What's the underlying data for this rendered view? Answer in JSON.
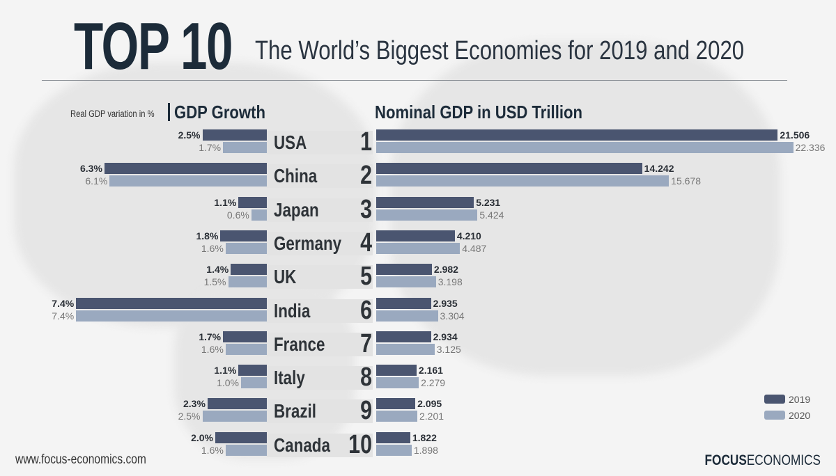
{
  "header": {
    "title": "TOP 10",
    "subtitle": "The World’s Biggest Economies for 2019 and 2020"
  },
  "footer": {
    "url": "www.focus-economics.com",
    "logo_bold": "FOCUS",
    "logo_rest": "ECONOMICS"
  },
  "legend": {
    "2019": "2019",
    "2020": "2020"
  },
  "colors": {
    "2019": "#4a5570",
    "2020": "#9aa9bf"
  },
  "chart_data": [
    {
      "type": "bar",
      "orientation": "horizontal",
      "title": "GDP Growth",
      "subtitle": "Real GDP variation in %",
      "categories": [
        "USA",
        "China",
        "Japan",
        "Germany",
        "UK",
        "India",
        "France",
        "Italy",
        "Brazil",
        "Canada"
      ],
      "ranks": [
        "1",
        "2",
        "3",
        "4",
        "5",
        "6",
        "7",
        "8",
        "9",
        "10"
      ],
      "series": [
        {
          "name": "2019",
          "values": [
            2.5,
            6.3,
            1.1,
            1.8,
            1.4,
            7.4,
            1.7,
            1.1,
            2.3,
            2.0
          ],
          "labels": [
            "2.5%",
            "6.3%",
            "1.1%",
            "1.8%",
            "1.4%",
            "7.4%",
            "1.7%",
            "1.1%",
            "2.3%",
            "2.0%"
          ]
        },
        {
          "name": "2020",
          "values": [
            1.7,
            6.1,
            0.6,
            1.6,
            1.5,
            7.4,
            1.6,
            1.0,
            2.5,
            1.6
          ],
          "labels": [
            "1.7%",
            "6.1%",
            "0.6%",
            "1.6%",
            "1.5%",
            "7.4%",
            "1.6%",
            "1.0%",
            "2.5%",
            "1.6%"
          ]
        }
      ]
    },
    {
      "type": "bar",
      "orientation": "horizontal",
      "title": "Nominal GDP in USD Trillion",
      "categories": [
        "USA",
        "China",
        "Japan",
        "Germany",
        "UK",
        "India",
        "France",
        "Italy",
        "Brazil",
        "Canada"
      ],
      "series": [
        {
          "name": "2019",
          "values": [
            21.506,
            14.242,
            5.231,
            4.21,
            2.982,
            2.935,
            2.934,
            2.161,
            2.095,
            1.822
          ],
          "labels": [
            "21.506",
            "14.242",
            "5.231",
            "4.210",
            "2.982",
            "2.935",
            "2.934",
            "2.161",
            "2.095",
            "1.822"
          ]
        },
        {
          "name": "2020",
          "values": [
            22.336,
            15.678,
            5.424,
            4.487,
            3.198,
            3.304,
            3.125,
            2.279,
            2.201,
            1.898
          ],
          "labels": [
            "22.336",
            "15.678",
            "5.424",
            "4.487",
            "3.198",
            "3.304",
            "3.125",
            "2.279",
            "2.201",
            "1.898"
          ]
        }
      ]
    }
  ]
}
